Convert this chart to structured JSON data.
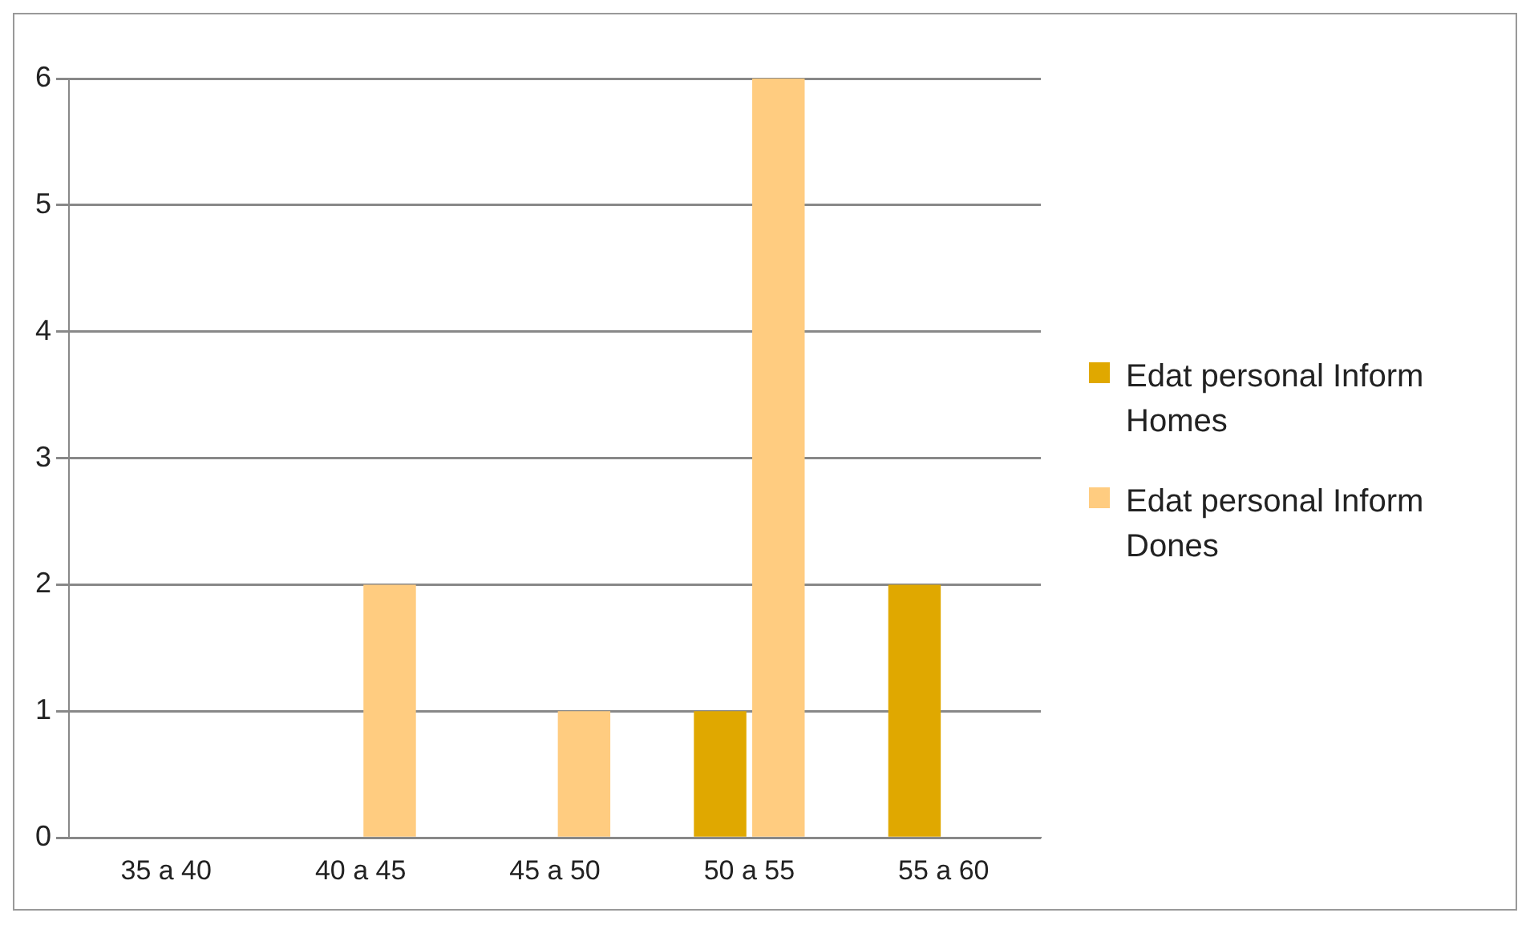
{
  "chart_data": {
    "type": "bar",
    "categories": [
      "35 a 40",
      "40 a 45",
      "45 a 50",
      "50 a 55",
      "55 a 60"
    ],
    "series": [
      {
        "name": "Edat personal Inform Homes",
        "color": "#e0a800",
        "values": [
          0,
          0,
          0,
          1,
          2
        ]
      },
      {
        "name": "Edat personal Inform Dones",
        "color": "#ffcc80",
        "values": [
          0,
          2,
          1,
          6,
          0
        ]
      }
    ],
    "ylim": [
      0,
      6
    ],
    "yticks": [
      0,
      1,
      2,
      3,
      4,
      5,
      6
    ],
    "grid": "y",
    "legend": "right"
  }
}
